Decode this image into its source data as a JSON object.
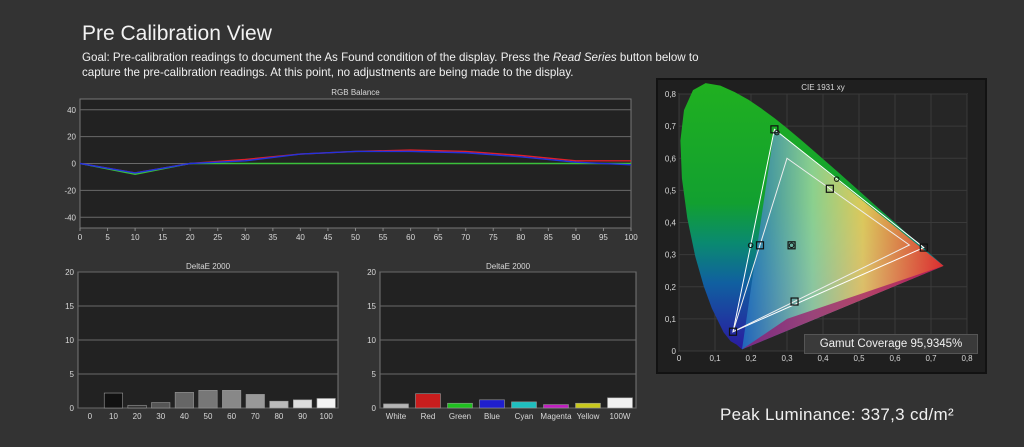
{
  "page": {
    "title": "Pre Calibration View",
    "goal_prefix": "Goal: Pre-calibration readings to document the As Found condition of the display. Press the ",
    "goal_emphasis": "Read Series",
    "goal_suffix": " button below to capture the pre-calibration readings. At this point, no adjustments are being made to the display."
  },
  "peak_luminance": "Peak Luminance: 337,3 cd/m²",
  "gamut_coverage": "Gamut Coverage 95,9345%",
  "colors": {
    "red_line": "#e0202a",
    "green_line": "#3bc03b",
    "blue_line": "#2233dd",
    "grid": "#6a6a6a",
    "plot_bg": "#222222"
  },
  "chart_data": [
    {
      "type": "line",
      "title": "RGB Balance",
      "x": [
        0,
        10,
        20,
        30,
        40,
        50,
        60,
        70,
        80,
        90,
        100
      ],
      "ylim": [
        -48,
        48
      ],
      "xticks": [
        0,
        5,
        10,
        15,
        20,
        25,
        30,
        35,
        40,
        45,
        50,
        55,
        60,
        65,
        70,
        75,
        80,
        85,
        90,
        95,
        100
      ],
      "yticks": [
        40,
        20,
        0,
        -20,
        -40
      ],
      "series": [
        {
          "color": "red",
          "values": [
            0,
            -7,
            0,
            3,
            7,
            9,
            10,
            9,
            6,
            2,
            2
          ]
        },
        {
          "color": "green",
          "values": [
            0,
            -8,
            0,
            0,
            0,
            0,
            0,
            0,
            0,
            0,
            0
          ]
        },
        {
          "color": "blue",
          "values": [
            0,
            -7,
            0,
            2,
            7,
            9,
            9,
            8,
            5,
            1,
            -1
          ]
        }
      ]
    },
    {
      "type": "bar",
      "title": "DeltaE 2000",
      "categories": [
        "0",
        "10",
        "20",
        "30",
        "40",
        "50",
        "60",
        "70",
        "80",
        "90",
        "100"
      ],
      "values": [
        0,
        2.2,
        0.4,
        0.8,
        2.3,
        2.6,
        2.6,
        2.0,
        1.0,
        1.2,
        1.4
      ],
      "colors": [
        "#000000",
        "#111111",
        "#333333",
        "#555555",
        "#666666",
        "#777777",
        "#888888",
        "#999999",
        "#bbbbbb",
        "#dddddd",
        "#f4f4f4"
      ],
      "ylim": [
        0,
        20
      ],
      "yticks": [
        20,
        15,
        10,
        5,
        0
      ]
    },
    {
      "type": "bar",
      "title": "DeltaE 2000",
      "categories": [
        "White",
        "Red",
        "Green",
        "Blue",
        "Cyan",
        "Magenta",
        "Yellow",
        "100W"
      ],
      "values": [
        0.6,
        2.1,
        0.7,
        1.2,
        0.9,
        0.5,
        0.7,
        1.5
      ],
      "colors": [
        "#b5b5b5",
        "#c81d1d",
        "#1fbf1f",
        "#1f1fcf",
        "#1fbfbf",
        "#c020c0",
        "#c8c81c",
        "#f0f0f0"
      ],
      "ylim": [
        0,
        20
      ],
      "yticks": [
        20,
        15,
        10,
        5,
        0
      ]
    },
    {
      "type": "scatter",
      "title": "CIE 1931 xy",
      "xlim": [
        0,
        0.8
      ],
      "ylim": [
        0,
        0.8
      ],
      "xticks": [
        "0",
        "0,1",
        "0,2",
        "0,3",
        "0,4",
        "0,5",
        "0,6",
        "0,7",
        "0,8"
      ],
      "yticks": [
        "0,8",
        "0,7",
        "0,6",
        "0,5",
        "0,4",
        "0,3",
        "0,2",
        "0,1",
        "0"
      ],
      "target_gamut": [
        [
          0.64,
          0.33
        ],
        [
          0.3,
          0.6
        ],
        [
          0.15,
          0.06
        ]
      ],
      "measured_gamut": [
        [
          0.68,
          0.322
        ],
        [
          0.265,
          0.69
        ],
        [
          0.15,
          0.06
        ]
      ],
      "points": [
        {
          "name": "Red target",
          "x": 0.68,
          "y": 0.322,
          "marker": "square"
        },
        {
          "name": "Green target",
          "x": 0.265,
          "y": 0.69,
          "marker": "square"
        },
        {
          "name": "Blue target",
          "x": 0.15,
          "y": 0.06,
          "marker": "square"
        },
        {
          "name": "Cyan target",
          "x": 0.225,
          "y": 0.329,
          "marker": "square"
        },
        {
          "name": "Magenta target",
          "x": 0.321,
          "y": 0.154,
          "marker": "square"
        },
        {
          "name": "Yellow target",
          "x": 0.419,
          "y": 0.505,
          "marker": "square"
        },
        {
          "name": "White target",
          "x": 0.3127,
          "y": 0.329,
          "marker": "square"
        },
        {
          "name": "White measured",
          "x": 0.3127,
          "y": 0.329,
          "marker": "circle"
        },
        {
          "name": "Cyan measured",
          "x": 0.199,
          "y": 0.329,
          "marker": "circle"
        },
        {
          "name": "Yellow measured",
          "x": 0.438,
          "y": 0.535,
          "marker": "circle"
        },
        {
          "name": "Green measured",
          "x": 0.272,
          "y": 0.68,
          "marker": "circle"
        }
      ]
    }
  ]
}
